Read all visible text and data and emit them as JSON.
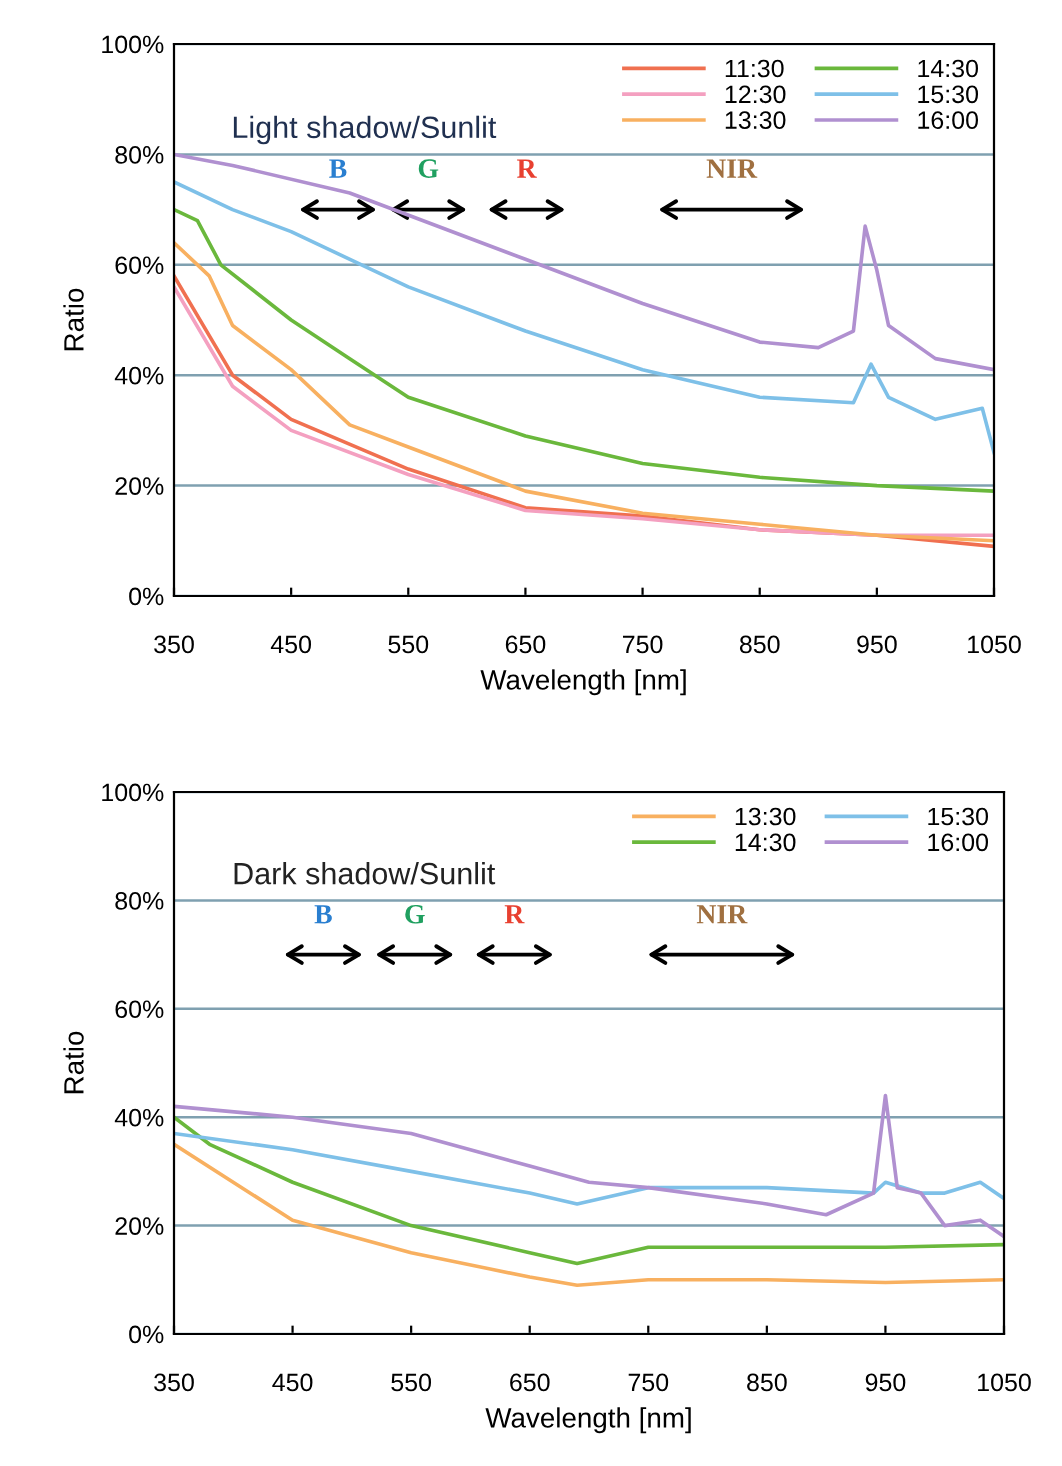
{
  "chart_data": [
    {
      "type": "line",
      "title": "Light shadow/Sunlit",
      "xlabel": "Wavelength [nm]",
      "ylabel": "Ratio",
      "xlim": [
        350,
        1050
      ],
      "xticks": [
        350,
        450,
        550,
        650,
        750,
        850,
        950,
        {
          "value": 1050,
          "label": "1050"
        }
      ],
      "ylim": [
        0,
        100
      ],
      "yticks": [
        {
          "value": 0,
          "label": "0%"
        },
        {
          "value": 20,
          "label": "20%"
        },
        {
          "value": 40,
          "label": "40%"
        },
        {
          "value": 60,
          "label": "60%"
        },
        {
          "value": 80,
          "label": "80%"
        },
        {
          "value": 100,
          "label": "100%"
        }
      ],
      "grid": "y",
      "legend": "top right",
      "line_style": "solid",
      "marker": "none",
      "annotations": [
        "B",
        "G",
        "R",
        "NIR"
      ],
      "series": [
        {
          "name": "11:30",
          "color": "#f07050",
          "x": [
            350,
            400,
            450,
            550,
            650,
            750,
            850,
            950,
            1050
          ],
          "values": [
            58,
            40,
            32,
            23,
            16,
            14.5,
            12,
            11,
            9
          ]
        },
        {
          "name": "12:30",
          "color": "#f4a0c0",
          "x": [
            350,
            400,
            450,
            550,
            650,
            750,
            850,
            950,
            1050
          ],
          "values": [
            56,
            38,
            30,
            22,
            15.5,
            14,
            12,
            11,
            11
          ]
        },
        {
          "name": "13:30",
          "color": "#f8b060",
          "x": [
            350,
            380,
            400,
            450,
            500,
            550,
            650,
            750,
            850,
            950,
            1050
          ],
          "values": [
            64,
            58,
            49,
            41,
            31,
            27,
            19,
            15,
            13,
            11,
            10
          ]
        },
        {
          "name": "14:30",
          "color": "#6ab83c",
          "x": [
            350,
            370,
            390,
            450,
            500,
            550,
            650,
            750,
            850,
            950,
            1050
          ],
          "values": [
            70,
            68,
            60,
            50,
            43,
            36,
            29,
            24,
            21.5,
            20,
            19
          ]
        },
        {
          "name": "15:30",
          "color": "#7ec0e8",
          "x": [
            350,
            400,
            450,
            550,
            650,
            750,
            850,
            930,
            945,
            960,
            1000,
            1040,
            1050
          ],
          "values": [
            75,
            70,
            66,
            56,
            48,
            41,
            36,
            35,
            42,
            36,
            32,
            34,
            26
          ]
        },
        {
          "name": "16:00",
          "color": "#b090d0",
          "x": [
            350,
            400,
            500,
            650,
            750,
            850,
            900,
            930,
            940,
            950,
            960,
            1000,
            1050
          ],
          "values": [
            80,
            78,
            73,
            61,
            53,
            46,
            45,
            48,
            67,
            59,
            49,
            43,
            41
          ]
        }
      ]
    },
    {
      "type": "line",
      "title": "Dark shadow/Sunlit",
      "xlabel": "Wavelength [nm]",
      "ylabel": "Ratio",
      "xlim": [
        350,
        1050
      ],
      "xticks": [
        350,
        450,
        550,
        650,
        750,
        850,
        950,
        {
          "value": 1050,
          "label": "1050"
        }
      ],
      "ylim": [
        0,
        100
      ],
      "yticks": [
        {
          "value": 0,
          "label": "0%"
        },
        {
          "value": 20,
          "label": "20%"
        },
        {
          "value": 40,
          "label": "40%"
        },
        {
          "value": 60,
          "label": "60%"
        },
        {
          "value": 80,
          "label": "80%"
        },
        {
          "value": 100,
          "label": "100%"
        }
      ],
      "grid": "y",
      "legend": "top right",
      "line_style": "solid",
      "marker": "none",
      "annotations": [
        "B",
        "G",
        "R",
        "NIR"
      ],
      "series": [
        {
          "name": "13:30",
          "color": "#f8b060",
          "x": [
            350,
            450,
            550,
            650,
            690,
            750,
            850,
            950,
            1050
          ],
          "values": [
            35,
            21,
            15,
            10.5,
            9,
            10,
            10,
            9.5,
            10
          ]
        },
        {
          "name": "14:30",
          "color": "#6ab83c",
          "x": [
            350,
            380,
            450,
            550,
            650,
            690,
            750,
            850,
            950,
            1050
          ],
          "values": [
            40,
            35,
            28,
            20,
            15,
            13,
            16,
            16,
            16,
            16.5
          ]
        },
        {
          "name": "15:30",
          "color": "#7ec0e8",
          "x": [
            350,
            450,
            550,
            650,
            690,
            750,
            850,
            940,
            950,
            980,
            1000,
            1030,
            1050
          ],
          "values": [
            37,
            34,
            30,
            26,
            24,
            27,
            27,
            26,
            28,
            26,
            26,
            28,
            25
          ]
        },
        {
          "name": "16:00",
          "color": "#b090d0",
          "x": [
            350,
            450,
            550,
            650,
            700,
            750,
            850,
            900,
            940,
            950,
            960,
            980,
            1000,
            1030,
            1050
          ],
          "values": [
            42,
            40,
            37,
            31,
            28,
            27,
            24,
            22,
            26,
            44,
            27,
            26,
            20,
            21,
            18
          ]
        }
      ]
    }
  ]
}
